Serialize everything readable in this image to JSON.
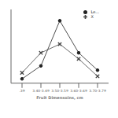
{
  "chart_data": {
    "type": "line",
    "categories": [
      ".39",
      "3.40-3.49",
      "3.50-3.59",
      "3.60-3.69",
      "3.70-3.79"
    ],
    "series": [
      {
        "name": "Le...",
        "color": "#222222",
        "marker": "o",
        "values": [
          5,
          20,
          72,
          35,
          15
        ]
      },
      {
        "name": "X",
        "color": "#444444",
        "marker": "x",
        "values": [
          12,
          35,
          45,
          28,
          8
        ]
      }
    ],
    "xlabel": "Fruit Dimensoins, cm",
    "ylim": [
      0,
      85
    ],
    "yticks": [],
    "grid": false,
    "legend": "upper right",
    "tick_labels": "x"
  }
}
